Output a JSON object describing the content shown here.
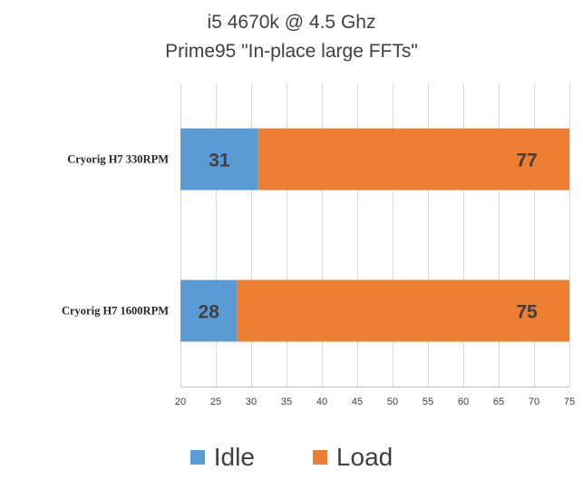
{
  "chart_data": {
    "type": "bar",
    "orientation": "horizontal",
    "stacked": true,
    "title_lines": [
      "i5 4670k @ 4.5 Ghz",
      "Prime95 \"In-place large FFTs\""
    ],
    "categories": [
      "Cryorig H7 330RPM",
      "Cryorig H7 1600RPM"
    ],
    "series": [
      {
        "name": "Idle",
        "color": "#5B9BD5",
        "start": [
          20,
          20
        ],
        "end": [
          31,
          28
        ],
        "labels": [
          "31",
          "28"
        ]
      },
      {
        "name": "Load",
        "color": "#ED7D31",
        "start": [
          31,
          28
        ],
        "end": [
          75,
          75
        ],
        "labels": [
          "77",
          "75"
        ]
      }
    ],
    "xlim": [
      20,
      75
    ],
    "xticks": [
      20,
      25,
      30,
      35,
      40,
      45,
      50,
      55,
      60,
      65,
      70,
      75
    ],
    "grid": true,
    "legend_position": "bottom",
    "xlabel": "",
    "ylabel": ""
  }
}
